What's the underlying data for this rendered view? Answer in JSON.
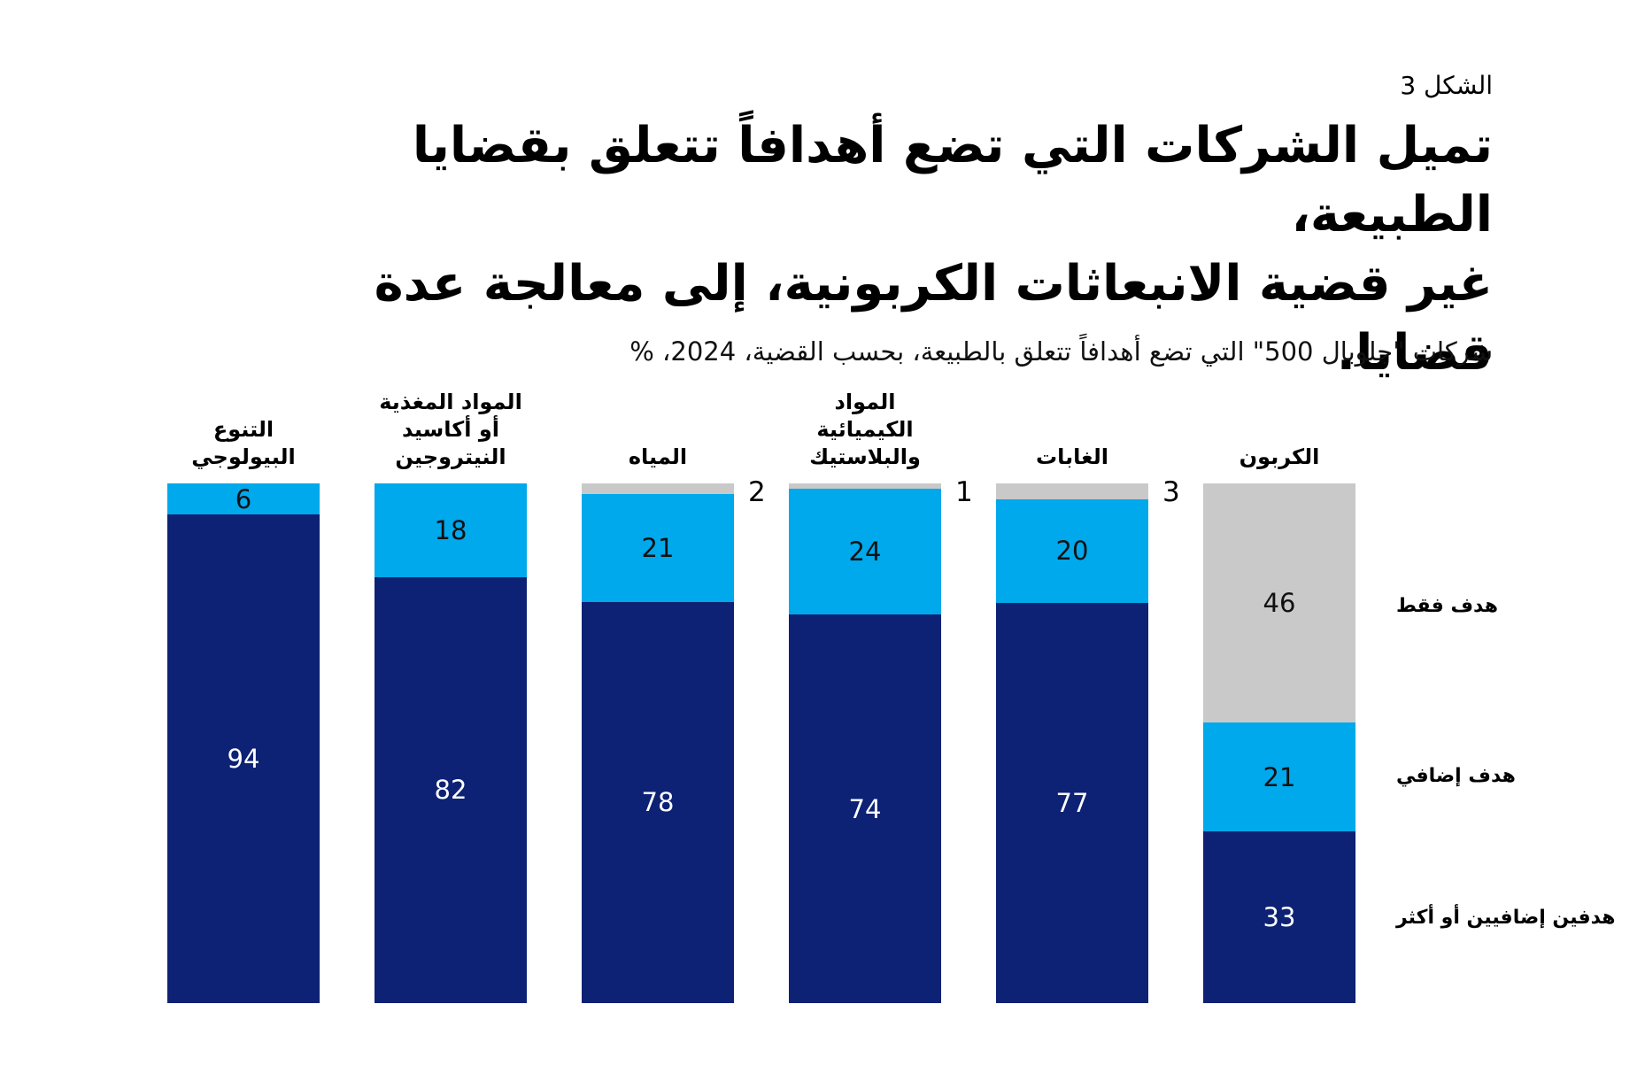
{
  "figure_label": "الشكل 3",
  "title": {
    "line1": "تميل الشركات التي تضع أهدافاً تتعلق بقضايا الطبيعة،",
    "line2": "غير قضية الانبعاثات الكربونية، إلى معالجة عدة قضايا."
  },
  "subtitle": "شركات \"جلوبال 500\" التي تضع أهدافاً تتعلق بالطبيعة، بحسب القضية، 2024، %",
  "colors": {
    "only_target": "#C9C9C9",
    "additional_target": "#00A8EC",
    "two_or_more": "#0D2274",
    "value_on_dark": "#FFFFFF",
    "value_on_light": "#111111",
    "text": "#000000"
  },
  "row_labels": {
    "only_target": "هدف فقط",
    "additional_target": "هدف إضافي",
    "two_or_more": "هدفين إضافيين أو أكثر"
  },
  "chart_data": {
    "type": "bar",
    "variant": "stacked-100",
    "direction": "rtl",
    "unit": "%",
    "year": "2024",
    "value_range": [
      0,
      100
    ],
    "grid": false,
    "legend_position": "right",
    "categories": [
      {
        "name": "التنوع البيولوجي",
        "label_lines": [
          "التنوع البيولوجي"
        ]
      },
      {
        "name": "المواد المغذية أو أكاسيد النيتروجين",
        "label_lines": [
          "المواد المغذية",
          "أو أكاسيد النيتروجين"
        ]
      },
      {
        "name": "المياه",
        "label_lines": [
          "المياه"
        ]
      },
      {
        "name": "المواد الكيميائية والبلاستيك",
        "label_lines": [
          "المواد الكيميائية",
          "والبلاستيك"
        ]
      },
      {
        "name": "الغابات",
        "label_lines": [
          "الغابات"
        ]
      },
      {
        "name": "الكربون",
        "label_lines": [
          "الكربون"
        ]
      }
    ],
    "series": [
      {
        "name": "هدف فقط",
        "role": "only_target",
        "color": "#C9C9C9",
        "values": [
          null,
          null,
          2,
          1,
          3,
          46
        ]
      },
      {
        "name": "هدف إضافي",
        "role": "additional_target",
        "color": "#00A8EC",
        "values": [
          6,
          18,
          21,
          24,
          20,
          21
        ]
      },
      {
        "name": "هدفين إضافيين أو أكثر",
        "role": "two_or_more",
        "color": "#0D2274",
        "values": [
          94,
          82,
          78,
          74,
          77,
          33
        ]
      }
    ]
  }
}
